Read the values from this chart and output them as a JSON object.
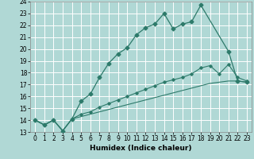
{
  "xlabel": "Humidex (Indice chaleur)",
  "bg_color": "#b0d8d5",
  "grid_color": "#ffffff",
  "line_color": "#2d7a6a",
  "xlim": [
    -0.5,
    23.5
  ],
  "ylim": [
    13,
    24
  ],
  "xticks": [
    0,
    1,
    2,
    3,
    4,
    5,
    6,
    7,
    8,
    9,
    10,
    11,
    12,
    13,
    14,
    15,
    16,
    17,
    18,
    19,
    20,
    21,
    22,
    23
  ],
  "yticks": [
    13,
    14,
    15,
    16,
    17,
    18,
    19,
    20,
    21,
    22,
    23,
    24
  ],
  "line1_x": [
    0,
    1,
    2,
    3,
    4,
    5,
    6,
    7,
    8,
    9,
    10,
    11,
    12,
    13,
    14,
    15,
    16,
    17,
    18,
    21,
    22,
    23
  ],
  "line1_y": [
    14,
    13.6,
    14,
    13.1,
    14.1,
    15.6,
    16.2,
    17.6,
    18.8,
    19.6,
    20.1,
    21.2,
    21.8,
    22.1,
    23.0,
    21.7,
    22.1,
    22.3,
    23.7,
    19.8,
    17.3,
    17.2
  ],
  "line2_x": [
    0,
    1,
    2,
    3,
    4,
    5,
    6,
    7,
    8,
    9,
    10,
    11,
    12,
    13,
    14,
    15,
    16,
    17,
    18,
    19,
    20,
    21,
    22,
    23
  ],
  "line2_y": [
    14,
    13.6,
    14,
    13.1,
    14.1,
    14.5,
    14.7,
    15.1,
    15.4,
    15.7,
    16.0,
    16.3,
    16.6,
    16.9,
    17.2,
    17.4,
    17.6,
    17.9,
    18.4,
    18.6,
    17.9,
    18.7,
    17.6,
    17.3
  ],
  "line3_x": [
    0,
    1,
    2,
    3,
    4,
    5,
    6,
    7,
    8,
    9,
    10,
    11,
    12,
    13,
    14,
    15,
    16,
    17,
    18,
    19,
    20,
    21,
    22,
    23
  ],
  "line3_y": [
    14,
    13.6,
    14,
    13.1,
    14.1,
    14.3,
    14.5,
    14.7,
    14.9,
    15.1,
    15.3,
    15.5,
    15.7,
    15.9,
    16.1,
    16.3,
    16.5,
    16.7,
    16.9,
    17.1,
    17.2,
    17.3,
    17.3,
    17.2
  ],
  "xlabel_fontsize": 6.5,
  "tick_fontsize": 5.5
}
